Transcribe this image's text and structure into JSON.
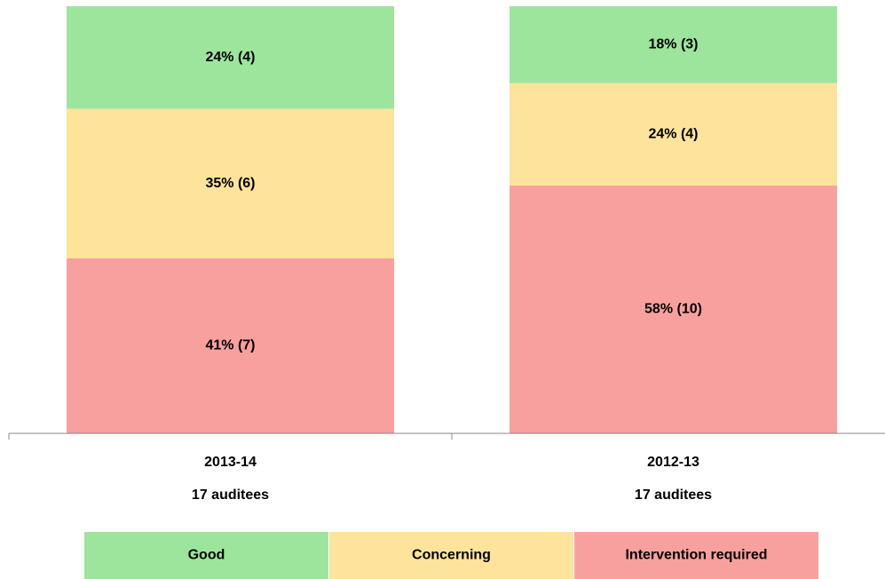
{
  "chart_data": {
    "type": "stacked_bar",
    "categories": [
      "2013-14",
      "2012-13"
    ],
    "category_sublabels": [
      "17 auditees",
      "17 auditees"
    ],
    "series": [
      {
        "name": "Good",
        "color": "#9de59d",
        "values": [
          24,
          18
        ],
        "value_labels": [
          "24% (4)",
          "18% (3)"
        ]
      },
      {
        "name": "Concerning",
        "color": "#fde49a",
        "values": [
          35,
          24
        ],
        "value_labels": [
          "35% (6)",
          "24% (4)"
        ]
      },
      {
        "name": "Intervention required",
        "color": "#f8a09e",
        "values": [
          41,
          58
        ],
        "value_labels": [
          "41% (7)",
          "58% (10)"
        ]
      }
    ],
    "ylim": [
      0,
      100
    ],
    "legend": "bottom"
  }
}
